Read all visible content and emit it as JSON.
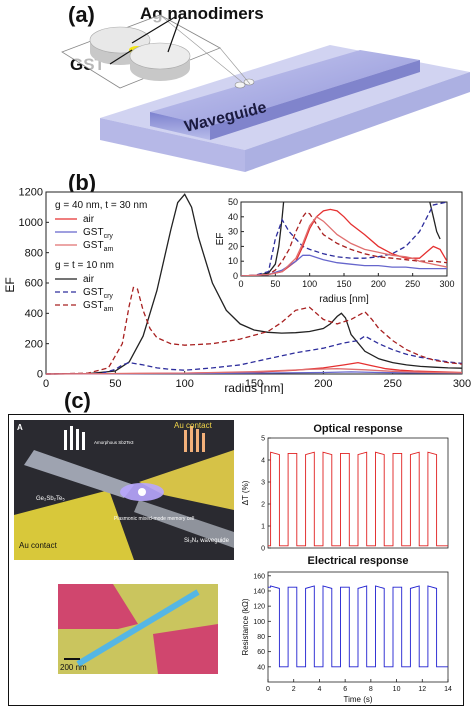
{
  "panels": {
    "a": {
      "label": "(a)",
      "callout_dimers": "Ag nanodimers",
      "callout_gst": "GST",
      "waveguide": "Waveguide"
    },
    "b": {
      "label": "(b)"
    },
    "c": {
      "label": "(c)"
    }
  },
  "chart_data": [
    {
      "type": "line",
      "xlabel": "radius [nm]",
      "ylabel": "EF",
      "xlim": [
        0,
        300
      ],
      "ylim": [
        0,
        1200
      ],
      "xticks": [
        "0",
        "50",
        "100",
        "150",
        "200",
        "250",
        "300"
      ],
      "yticks": [
        "0",
        "200",
        "400",
        "600",
        "800",
        "1000",
        "1200"
      ],
      "legend_header_1": "g = 40 nm, t = 30 nm",
      "legend_header_2": "g = t = 10 nm",
      "series_labels": {
        "air": "air",
        "gst_base": "GST",
        "cry": "cry",
        "am": "am"
      },
      "series": [
        {
          "name": "air",
          "group": "g = t = 10 nm",
          "color": "#222222",
          "dash": "solid",
          "x": [
            0,
            30,
            50,
            60,
            70,
            80,
            90,
            95,
            100,
            105,
            110,
            120,
            130,
            140,
            150,
            160,
            170,
            180,
            190,
            200,
            205,
            210,
            213,
            216,
            220,
            230,
            240,
            250,
            260,
            270,
            280,
            290,
            300
          ],
          "y": [
            0,
            2,
            20,
            80,
            250,
            550,
            950,
            1130,
            1185,
            1100,
            900,
            600,
            420,
            330,
            290,
            275,
            270,
            272,
            280,
            300,
            330,
            380,
            400,
            370,
            260,
            150,
            100,
            75,
            60,
            50,
            45,
            40,
            38
          ]
        },
        {
          "name": "GST cry",
          "group": "g = t = 10 nm",
          "color": "#2d2d9c",
          "dash": "dash",
          "x": [
            0,
            40,
            50,
            55,
            60,
            70,
            80,
            90,
            100,
            120,
            140,
            160,
            180,
            200,
            215,
            225,
            230,
            240,
            250,
            260,
            270,
            280,
            290,
            300
          ],
          "y": [
            0,
            4,
            30,
            60,
            75,
            60,
            40,
            30,
            25,
            40,
            60,
            100,
            140,
            170,
            205,
            220,
            250,
            200,
            160,
            130,
            110,
            95,
            80,
            70
          ]
        },
        {
          "name": "GST am",
          "group": "g = t = 10 nm",
          "color": "#a82020",
          "dash": "dash",
          "x": [
            0,
            30,
            45,
            55,
            60,
            63,
            66,
            70,
            75,
            80,
            90,
            100,
            120,
            140,
            160,
            170,
            180,
            190,
            200,
            210,
            220,
            230,
            235,
            240,
            250,
            260,
            270,
            280,
            290,
            300
          ],
          "y": [
            0,
            5,
            40,
            200,
            450,
            570,
            560,
            420,
            300,
            240,
            200,
            190,
            200,
            230,
            280,
            340,
            420,
            440,
            360,
            330,
            360,
            410,
            360,
            300,
            220,
            160,
            120,
            90,
            75,
            65
          ]
        },
        {
          "name": "air",
          "group": "g = 40 nm, t = 30 nm",
          "color": "#e53030",
          "dash": "solid",
          "x": [
            0,
            100,
            150,
            180,
            200,
            215,
            225,
            235,
            245,
            255,
            265,
            280,
            300
          ],
          "y": [
            0,
            5,
            12,
            25,
            40,
            60,
            75,
            55,
            35,
            25,
            20,
            15,
            10
          ]
        },
        {
          "name": "GST cry",
          "group": "g = 40 nm, t = 30 nm",
          "color": "#6666cc",
          "dash": "solid",
          "x": [
            0,
            100,
            150,
            200,
            220,
            240,
            260,
            300
          ],
          "y": [
            0,
            3,
            6,
            10,
            14,
            10,
            8,
            6
          ]
        },
        {
          "name": "GST am",
          "group": "g = 40 nm, t = 30 nm",
          "color": "#e07070",
          "dash": "solid",
          "x": [
            0,
            100,
            150,
            190,
            210,
            230,
            250,
            270,
            300
          ],
          "y": [
            0,
            6,
            15,
            30,
            35,
            28,
            18,
            12,
            8
          ]
        }
      ]
    },
    {
      "type": "line",
      "xlabel": "radius [nm]",
      "ylabel": "EF",
      "xlim": [
        0,
        300
      ],
      "ylim": [
        0,
        50
      ],
      "xticks": [
        "0",
        "50",
        "100",
        "150",
        "200",
        "250",
        "300"
      ],
      "yticks": [
        "0",
        "10",
        "20",
        "30",
        "40",
        "50"
      ],
      "series": [
        {
          "name": "air",
          "color": "#222222",
          "dash": "solid",
          "x": [
            0,
            20,
            40,
            50,
            55,
            60,
            62
          ],
          "y": [
            0,
            0.3,
            2,
            8,
            20,
            40,
            50
          ]
        },
        {
          "name": "air",
          "color": "#222222",
          "dash": "solid",
          "x": [
            275,
            280,
            285,
            290
          ],
          "y": [
            50,
            40,
            30,
            25
          ]
        },
        {
          "name": "GST cry",
          "color": "#2d2d9c",
          "dash": "dash",
          "x": [
            0,
            20,
            40,
            50,
            60,
            70,
            80,
            90,
            100,
            120,
            140,
            160,
            180,
            200,
            220,
            240,
            260,
            280,
            300
          ],
          "y": [
            0,
            0.5,
            3,
            25,
            38,
            30,
            25,
            20,
            18,
            15,
            13,
            12,
            12,
            13,
            15,
            20,
            30,
            48,
            50
          ]
        },
        {
          "name": "GST am",
          "color": "#a82020",
          "dash": "dash",
          "x": [
            0,
            40,
            50,
            60,
            70,
            80,
            90,
            95,
            100,
            110,
            120,
            140,
            160,
            180,
            200,
            220,
            240,
            260,
            280,
            300
          ],
          "y": [
            0,
            1,
            4,
            10,
            18,
            30,
            40,
            43,
            42,
            35,
            28,
            22,
            18,
            15,
            13,
            12,
            11,
            10,
            10,
            9
          ]
        },
        {
          "name": "air",
          "color": "#e53030",
          "dash": "solid",
          "x": [
            0,
            40,
            60,
            80,
            90,
            100,
            110,
            120,
            130,
            140,
            150,
            160,
            180,
            200,
            220,
            240,
            260,
            270,
            280,
            290,
            300
          ],
          "y": [
            0,
            1,
            3,
            10,
            20,
            32,
            40,
            44,
            45,
            44,
            40,
            35,
            28,
            20,
            15,
            12,
            12,
            16,
            20,
            18,
            10
          ]
        },
        {
          "name": "GST cry",
          "color": "#6666cc",
          "dash": "solid",
          "x": [
            0,
            40,
            60,
            80,
            90,
            100,
            120,
            140,
            160,
            180,
            200,
            220,
            240,
            260,
            280,
            300
          ],
          "y": [
            0,
            1,
            4,
            10,
            14,
            14,
            11,
            9,
            8,
            7,
            7,
            6,
            6,
            5,
            5,
            5
          ]
        },
        {
          "name": "GST am",
          "color": "#e07070",
          "dash": "solid",
          "x": [
            0,
            40,
            60,
            80,
            90,
            100,
            110,
            120,
            140,
            160,
            180,
            200,
            220,
            240,
            250,
            260,
            280,
            300
          ],
          "y": [
            0,
            1,
            3,
            12,
            22,
            34,
            40,
            37,
            28,
            22,
            18,
            16,
            14,
            13,
            12,
            10,
            8,
            6
          ]
        }
      ]
    },
    {
      "type": "line",
      "title": "Optical response",
      "xlabel": "",
      "ylabel": "ΔT (%)",
      "ylim": [
        0,
        5
      ],
      "yticks": [
        "0",
        "1",
        "2",
        "3",
        "4",
        "5"
      ],
      "series": [
        {
          "name": "",
          "color": "#e02020",
          "dash": "solid",
          "levels_high": 4.3,
          "levels_low": 0.1,
          "cycles": 10
        }
      ]
    },
    {
      "type": "line",
      "title": "Electrical response",
      "xlabel": "Time (s)",
      "ylabel": "Resistance (kΩ)",
      "xlim": [
        0,
        14
      ],
      "ylim": [
        20,
        165
      ],
      "xticks": [
        "0",
        "2",
        "4",
        "6",
        "8",
        "10",
        "12",
        "14"
      ],
      "yticks": [
        "40",
        "60",
        "80",
        "100",
        "120",
        "140",
        "160"
      ],
      "series": [
        {
          "name": "",
          "color": "#2020d0",
          "dash": "solid",
          "levels_high": 145,
          "levels_low": 40,
          "cycles": 10
        }
      ]
    }
  ],
  "panel_c_inset": {
    "label_a": "A",
    "au_contact_top": "Au contact",
    "au_contact_bottom": "Au contact",
    "amorphous_label": "Amorphous Sb2Te3",
    "gst_label": "Ge₂Sb₂Te₅",
    "plasmonic_label": "Plasmonic mixed-mode memory cell",
    "sin_label": "Si₃N₄ waveguide",
    "scale_bar": "200 nm"
  }
}
